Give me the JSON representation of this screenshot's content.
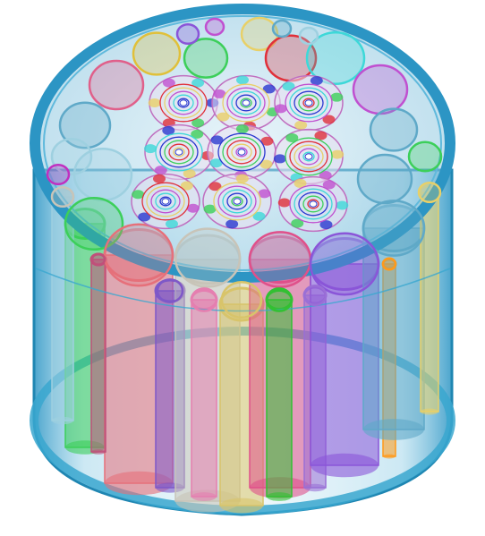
{
  "scene": {
    "subject": "3d-cable-bundle-cross-section",
    "colors": {
      "jacket": "#3aa7cf",
      "jacket_dark": "#1f86b2",
      "background": "#ffffff"
    }
  }
}
